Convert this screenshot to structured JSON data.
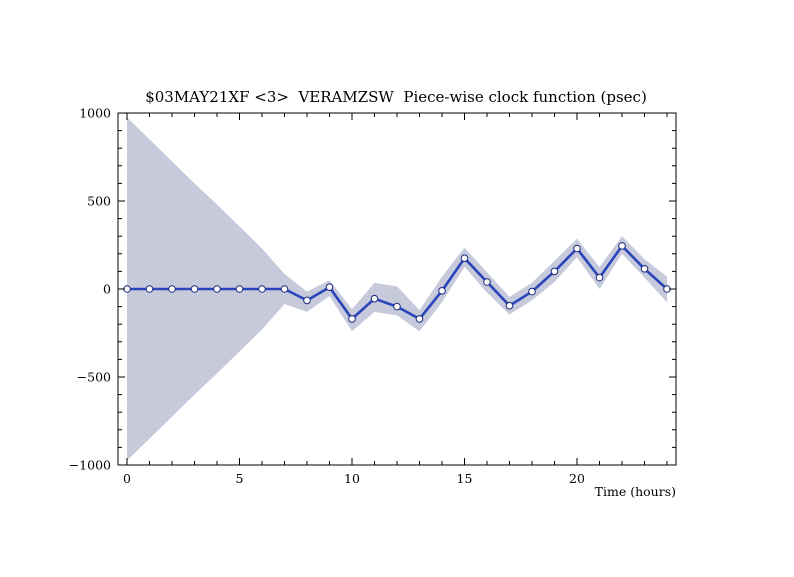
{
  "chart_data": {
    "type": "line",
    "title": "$03MAY21XF <3>  VERAMZSW  Piece-wise clock function (psec)",
    "xlabel": "Time (hours)",
    "ylabel": "",
    "xlim": [
      -0.4,
      24.4
    ],
    "ylim": [
      -1000,
      1000
    ],
    "xticks": [
      0,
      5,
      10,
      15,
      20
    ],
    "yticks": [
      -1000,
      -500,
      0,
      500,
      1000
    ],
    "x_tick_labels": [
      "0",
      "5",
      "10",
      "15",
      "20"
    ],
    "y_tick_labels": [
      "−1000",
      "−500",
      "0",
      "500",
      "1000"
    ],
    "grid": false,
    "legend": "none",
    "colors": {
      "line": "#2a44bb",
      "band": "#c6cadb",
      "marker_fill": "#ffffff",
      "marker_edge": "#1a2a7a"
    },
    "series": [
      {
        "x": [
          0,
          1,
          2,
          3,
          4,
          5,
          6,
          7,
          8,
          9,
          10,
          11,
          12,
          13,
          14,
          15,
          16,
          17,
          18,
          19,
          20,
          21,
          22,
          23,
          24
        ],
        "values": [
          0,
          0,
          0,
          0,
          0,
          0,
          0,
          0,
          -65,
          10,
          -170,
          -55,
          -100,
          -170,
          -10,
          175,
          40,
          -95,
          -15,
          100,
          230,
          65,
          245,
          115,
          0
        ],
        "upper": [
          975,
          850,
          725,
          600,
          480,
          355,
          230,
          85,
          -15,
          50,
          -115,
          35,
          15,
          -120,
          70,
          235,
          95,
          -45,
          35,
          160,
          285,
          125,
          300,
          170,
          70
        ],
        "lower": [
          -975,
          -850,
          -725,
          -600,
          -480,
          -355,
          -230,
          -85,
          -130,
          -40,
          -240,
          -130,
          -150,
          -240,
          -75,
          125,
          -20,
          -145,
          -65,
          40,
          180,
          0,
          200,
          65,
          -75
        ]
      }
    ]
  }
}
